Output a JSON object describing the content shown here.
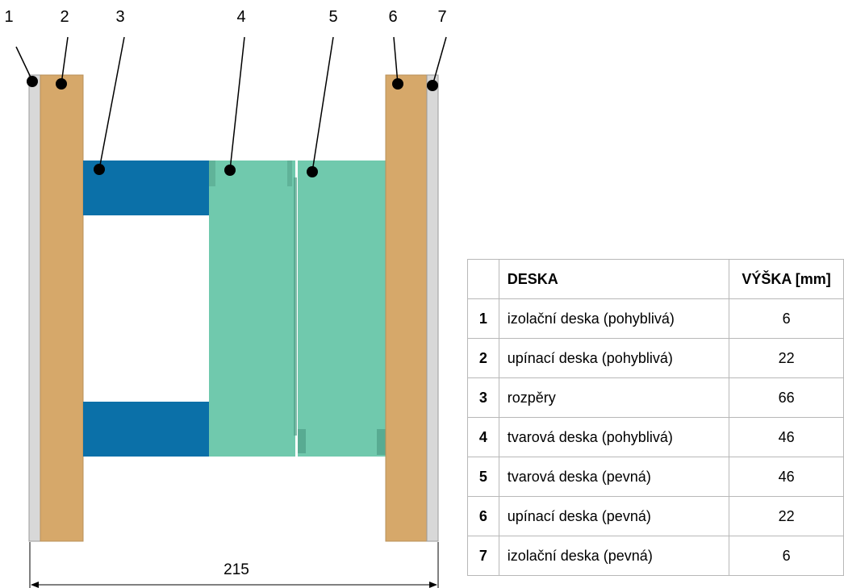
{
  "callouts": [
    "1",
    "2",
    "3",
    "4",
    "5",
    "6",
    "7"
  ],
  "dimension_label": "215",
  "colors": {
    "insulation": "#d8d8d8",
    "clamping": "#d6a86a",
    "spacer": "#0b70a8",
    "cavity": "#70c9ad",
    "cavity_dark": "#4f9e86"
  },
  "table": {
    "headers": {
      "num": "",
      "plate": "DESKA",
      "height": "VÝŠKA [mm]"
    },
    "rows": [
      {
        "num": "1",
        "name": "izolační deska (pohyblivá)",
        "height": "6"
      },
      {
        "num": "2",
        "name": "upínací deska (pohyblivá)",
        "height": "22"
      },
      {
        "num": "3",
        "name": "rozpěry",
        "height": "66"
      },
      {
        "num": "4",
        "name": "tvarová deska (pohyblivá)",
        "height": "46"
      },
      {
        "num": "5",
        "name": "tvarová deska (pevná)",
        "height": "46"
      },
      {
        "num": "6",
        "name": "upínací deska (pevná)",
        "height": "22"
      },
      {
        "num": "7",
        "name": "izolační deska (pevná)",
        "height": "6"
      }
    ]
  }
}
